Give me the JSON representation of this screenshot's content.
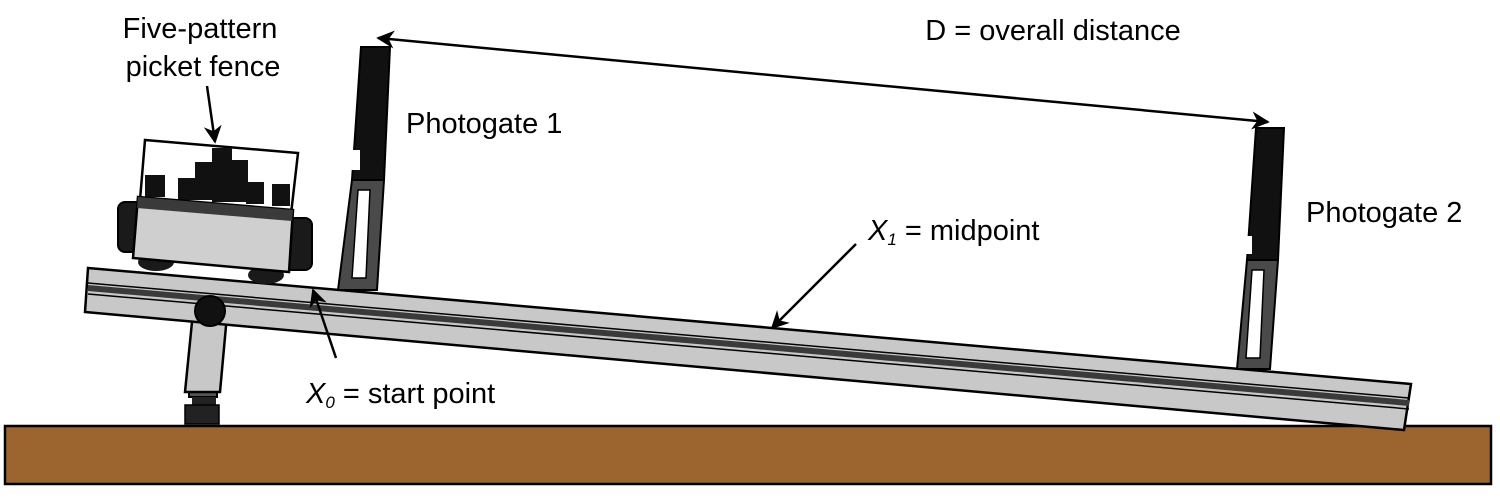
{
  "labels": {
    "fence_line1": "Five-pattern",
    "fence_line2": "picket fence",
    "distance": "D = overall distance",
    "gate1": "Photogate 1",
    "gate2": "Photogate 2",
    "x1_var": "X",
    "x1_sub": "1",
    "x1_text": " = midpoint",
    "x0_var": "X",
    "x0_sub": "0",
    "x0_text": " = start point"
  },
  "colors": {
    "floor": "#9c6530",
    "track": "#c8c8c8",
    "groove": "#3a3a3a",
    "outline": "#000000",
    "cart_body": "#cfcfcf",
    "gate_dark": "#111111",
    "gate_mid": "#4a4a4a"
  }
}
